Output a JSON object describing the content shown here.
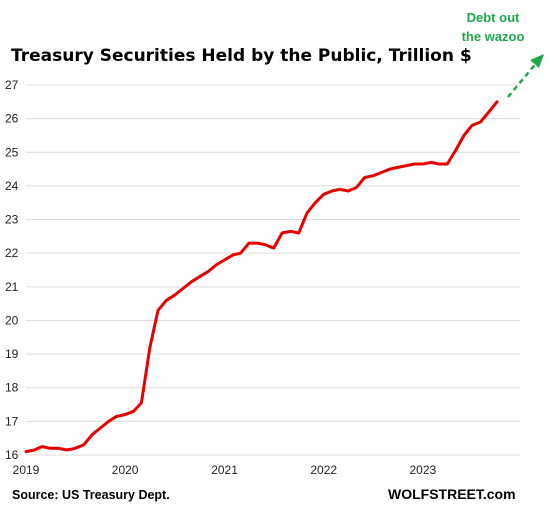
{
  "chart_data": {
    "type": "line",
    "title": "Treasury Securities Held by the Public, Trillion $",
    "xlabel": "",
    "ylabel": "",
    "ylim": [
      16,
      27
    ],
    "yticks": [
      16,
      17,
      18,
      19,
      20,
      21,
      22,
      23,
      24,
      25,
      26,
      27
    ],
    "xticks": [
      "2019",
      "2020",
      "2021",
      "2022",
      "2023"
    ],
    "grid": "horizontal",
    "legend": "none",
    "line_color": "#e60000",
    "series": [
      {
        "x": [
          "2019-01-01",
          "2019-02-01",
          "2019-03-01",
          "2019-04-01",
          "2019-05-01",
          "2019-06-01",
          "2019-07-01",
          "2019-08-01",
          "2019-09-01",
          "2019-10-01",
          "2019-11-01",
          "2019-12-01",
          "2020-01-01",
          "2020-02-01",
          "2020-03-01",
          "2020-04-01",
          "2020-05-01",
          "2020-06-01",
          "2020-07-01",
          "2020-08-01",
          "2020-09-01",
          "2020-10-01",
          "2020-11-01",
          "2020-12-01",
          "2021-01-01",
          "2021-02-01",
          "2021-03-01",
          "2021-04-01",
          "2021-05-01",
          "2021-06-01",
          "2021-07-01",
          "2021-08-01",
          "2021-09-01",
          "2021-10-01",
          "2021-11-01",
          "2021-12-01",
          "2022-01-01",
          "2022-02-01",
          "2022-03-01",
          "2022-04-01",
          "2022-05-01",
          "2022-06-01",
          "2022-07-01",
          "2022-08-01",
          "2022-09-01",
          "2022-10-01",
          "2022-11-01",
          "2022-12-01",
          "2023-01-01",
          "2023-02-01",
          "2023-03-01",
          "2023-04-01",
          "2023-05-01",
          "2023-06-01",
          "2023-07-01",
          "2023-08-01",
          "2023-09-01",
          "2023-10-01"
        ],
        "values": [
          16.1,
          16.15,
          16.25,
          16.2,
          16.2,
          16.15,
          16.2,
          16.3,
          16.6,
          16.8,
          17.0,
          17.15,
          17.2,
          17.3,
          17.55,
          19.2,
          20.3,
          20.6,
          20.75,
          20.95,
          21.15,
          21.3,
          21.45,
          21.65,
          21.8,
          21.95,
          22.0,
          22.3,
          22.3,
          22.25,
          22.15,
          22.6,
          22.65,
          22.6,
          23.2,
          23.5,
          23.75,
          23.85,
          23.9,
          23.85,
          23.95,
          24.25,
          24.3,
          24.4,
          24.5,
          24.55,
          24.6,
          24.65,
          24.65,
          24.7,
          24.65,
          24.65,
          25.05,
          25.5,
          25.8,
          25.9,
          26.2,
          26.5
        ]
      }
    ],
    "source": "Source: US Treasury Dept.",
    "brand": "WOLFSTREET.com",
    "annotation": {
      "lines": [
        "Debt out",
        "the wazoo"
      ],
      "color": "#1fa84a"
    }
  }
}
